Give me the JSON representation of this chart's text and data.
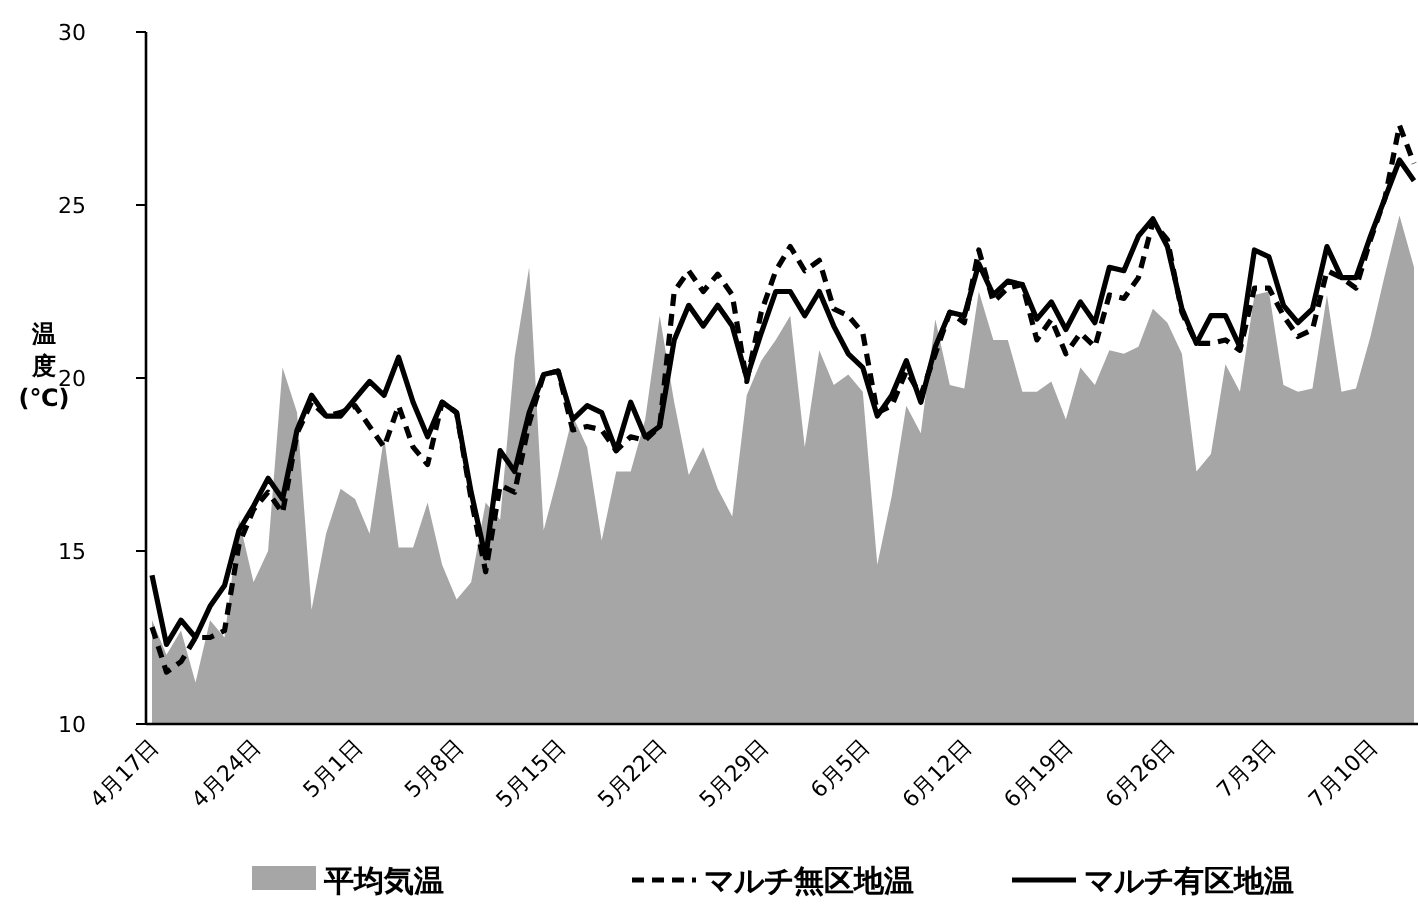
{
  "chart_data": {
    "type": "line",
    "ylabel": "温度(℃)",
    "categories": [
      "4月17日",
      null,
      null,
      null,
      null,
      null,
      null,
      "4月24日",
      null,
      null,
      null,
      null,
      null,
      null,
      "5月1日",
      null,
      null,
      null,
      null,
      null,
      null,
      "5月8日",
      null,
      null,
      null,
      null,
      null,
      null,
      "5月15日",
      null,
      null,
      null,
      null,
      null,
      null,
      "5月22日",
      null,
      null,
      null,
      null,
      null,
      null,
      "5月29日",
      null,
      null,
      null,
      null,
      null,
      null,
      "6月5日",
      null,
      null,
      null,
      null,
      null,
      null,
      "6月12日",
      null,
      null,
      null,
      null,
      null,
      null,
      "6月19日",
      null,
      null,
      null,
      null,
      null,
      null,
      "6月26日",
      null,
      null,
      null,
      null,
      null,
      null,
      "7月3日",
      null,
      null,
      null,
      null,
      null,
      null,
      "7月10日",
      null,
      null,
      null
    ],
    "ylim": [
      10,
      30
    ],
    "yticks": [
      10,
      15,
      20,
      25,
      30
    ],
    "grid": false,
    "legend": "bottom",
    "series": [
      {
        "name": "平均気温",
        "type": "area",
        "color": "#a6a6a6",
        "values": [
          13.0,
          12.0,
          12.7,
          11.2,
          13.0,
          12.5,
          15.9,
          14.1,
          15.0,
          20.3,
          19.0,
          13.3,
          15.5,
          16.8,
          16.5,
          15.5,
          18.3,
          15.1,
          15.1,
          16.4,
          14.6,
          13.6,
          14.1,
          16.4,
          15.9,
          20.6,
          23.2,
          15.6,
          17.2,
          18.9,
          18.0,
          15.3,
          17.3,
          17.3,
          18.8,
          21.8,
          19.3,
          17.2,
          18.0,
          16.8,
          16.0,
          19.5,
          20.5,
          21.1,
          21.8,
          18.0,
          20.8,
          19.8,
          20.1,
          19.6,
          14.6,
          16.6,
          19.2,
          18.4,
          21.7,
          19.8,
          19.7,
          22.5,
          21.1,
          21.1,
          19.6,
          19.6,
          19.9,
          18.8,
          20.3,
          19.8,
          20.8,
          20.7,
          20.9,
          22.0,
          21.6,
          20.7,
          17.3,
          17.8,
          20.4,
          19.6,
          22.4,
          22.5,
          19.8,
          19.6,
          19.7,
          22.4,
          19.6,
          19.7,
          21.2,
          23.0,
          24.7,
          23.2
        ]
      },
      {
        "name": "マルチ無区地温",
        "type": "line",
        "color": "#000000",
        "line_style": "dashed",
        "values": [
          12.8,
          11.5,
          11.8,
          12.5,
          12.5,
          12.7,
          15.2,
          16.2,
          16.7,
          16.1,
          18.4,
          19.3,
          18.9,
          19.0,
          19.2,
          18.6,
          18.0,
          19.2,
          18.0,
          17.5,
          19.3,
          19.0,
          16.5,
          14.4,
          16.9,
          16.7,
          18.7,
          20.1,
          20.2,
          18.5,
          18.6,
          18.5,
          17.9,
          18.3,
          18.2,
          18.6,
          22.5,
          23.1,
          22.5,
          23.0,
          22.4,
          19.9,
          21.9,
          23.1,
          23.8,
          23.1,
          23.4,
          22.0,
          21.8,
          21.3,
          19.0,
          19.2,
          20.2,
          19.5,
          20.7,
          21.9,
          21.6,
          23.7,
          22.2,
          22.6,
          22.7,
          21.1,
          21.7,
          20.7,
          21.3,
          20.9,
          22.4,
          22.3,
          22.9,
          24.5,
          24.0,
          21.9,
          21.0,
          21.0,
          21.1,
          20.8,
          22.6,
          22.6,
          21.8,
          21.2,
          21.4,
          23.1,
          22.9,
          22.6,
          24.0,
          25.2,
          27.3,
          26.2
        ]
      },
      {
        "name": "マルチ有区地温",
        "type": "line",
        "color": "#000000",
        "line_style": "solid",
        "values": [
          14.3,
          12.3,
          13.0,
          12.5,
          13.4,
          14.0,
          15.6,
          16.3,
          17.1,
          16.5,
          18.5,
          19.5,
          18.9,
          18.9,
          19.4,
          19.9,
          19.5,
          20.6,
          19.3,
          18.3,
          19.3,
          19.0,
          16.7,
          14.8,
          17.9,
          17.3,
          19.0,
          20.1,
          20.2,
          18.8,
          19.2,
          19.0,
          17.9,
          19.3,
          18.3,
          18.6,
          21.1,
          22.1,
          21.5,
          22.1,
          21.5,
          20.0,
          21.3,
          22.5,
          22.5,
          21.8,
          22.5,
          21.5,
          20.7,
          20.3,
          18.9,
          19.5,
          20.5,
          19.3,
          20.9,
          21.9,
          21.8,
          23.3,
          22.4,
          22.8,
          22.7,
          21.7,
          22.2,
          21.4,
          22.2,
          21.6,
          23.2,
          23.1,
          24.1,
          24.6,
          23.8,
          22.0,
          21.0,
          21.8,
          21.8,
          20.9,
          23.7,
          23.5,
          22.1,
          21.6,
          22.0,
          23.8,
          22.9,
          22.9,
          24.1,
          25.2,
          26.3,
          25.7
        ]
      }
    ]
  }
}
